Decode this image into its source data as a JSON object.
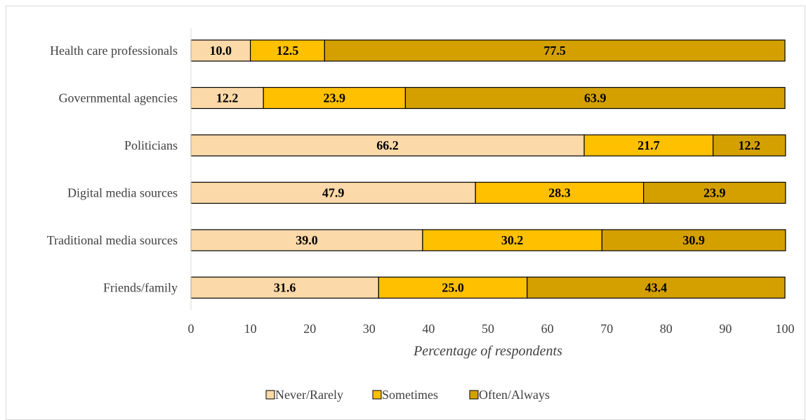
{
  "chart_data": {
    "type": "bar",
    "orientation": "horizontal",
    "stacked": true,
    "categories": [
      "Health care professionals",
      "Governmental agencies",
      "Politicians",
      "Digital media sources",
      "Traditional media sources",
      "Friends/family"
    ],
    "series": [
      {
        "name": "Never/Rarely",
        "color": "#FBD9A8",
        "values": [
          10.0,
          12.2,
          66.2,
          47.9,
          39.0,
          31.6
        ]
      },
      {
        "name": "Sometimes",
        "color": "#FFC000",
        "values": [
          12.5,
          23.9,
          21.7,
          28.3,
          30.2,
          25.0
        ]
      },
      {
        "name": "Often/Always",
        "color": "#D4A000",
        "values": [
          77.5,
          63.9,
          12.2,
          23.9,
          30.9,
          43.4
        ]
      }
    ],
    "xlabel": "Percentage of respondents",
    "ylabel": "",
    "xlim": [
      0,
      100
    ],
    "xticks": [
      0,
      10,
      20,
      30,
      40,
      50,
      60,
      70,
      80,
      90,
      100
    ],
    "grid": false,
    "legend_position": "bottom"
  }
}
